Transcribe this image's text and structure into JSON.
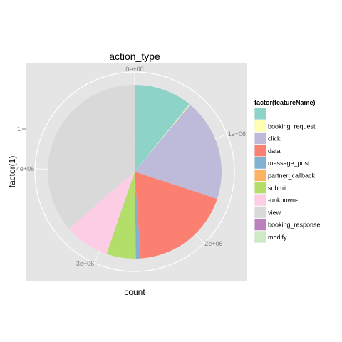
{
  "chart_data": {
    "type": "pie",
    "title": "action_type",
    "xlabel": "count",
    "ylabel": "factor(1)",
    "y_tick_labels": [
      "1"
    ],
    "radial_ticks": [
      {
        "label": "0e+00",
        "value": 0
      },
      {
        "label": "1e+06",
        "value": 1000000
      },
      {
        "label": "2e+06",
        "value": 2000000
      },
      {
        "label": "3e+06",
        "value": 3000000
      },
      {
        "label": "4e+06",
        "value": 4000000
      }
    ],
    "total": 5300000,
    "grid": true,
    "legend_title": "factor(featureName)",
    "legend_position": "right",
    "background_color": "#e5e5e5",
    "slices": [
      {
        "name": "",
        "value": 575000,
        "color": "#8dd3c7"
      },
      {
        "name": "booking_request",
        "value": 8000,
        "color": "#ffffb3"
      },
      {
        "name": "click",
        "value": 1010000,
        "color": "#bebada"
      },
      {
        "name": "data",
        "value": 1000000,
        "color": "#fb8072"
      },
      {
        "name": "message_post",
        "value": 45000,
        "color": "#80b1d3"
      },
      {
        "name": "partner_callback",
        "value": 5000,
        "color": "#fdb462"
      },
      {
        "name": "submit",
        "value": 285000,
        "color": "#b3de69"
      },
      {
        "name": "-unknown-",
        "value": 445000,
        "color": "#fccde5"
      },
      {
        "name": "view",
        "value": 1925000,
        "color": "#d9d9d9"
      },
      {
        "name": "booking_response",
        "value": 1000,
        "color": "#bc80bd"
      },
      {
        "name": "modify",
        "value": 1000,
        "color": "#ccebc5"
      }
    ]
  }
}
